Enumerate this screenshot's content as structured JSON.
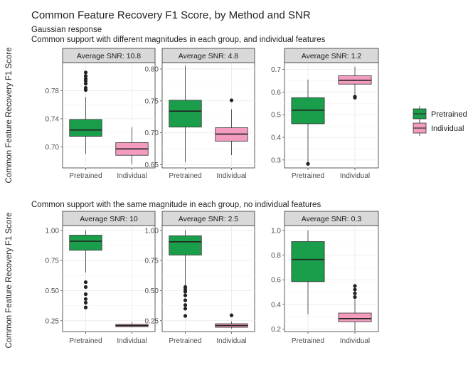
{
  "title": "Common Feature Recovery F1 Score, by Method and SNR",
  "subtitle_lines": [
    "Gaussian response",
    "Common support with different magnitudes in each group, and individual features"
  ],
  "section2_title": "Common support with the same magnitude in each group, no individual features",
  "ylabel": "Common Feature Recovery F1 Score",
  "legend": {
    "entries": [
      {
        "label": "Pretrained",
        "color": "#1b9e4b"
      },
      {
        "label": "Individual",
        "color": "#f39cbf"
      }
    ]
  },
  "colors": {
    "pretrained": "#1b9e4b",
    "individual": "#f39cbf",
    "strip": "#d9d9d9",
    "grid": "#ebebeb"
  },
  "chart_data": [
    {
      "type": "box",
      "title": "Average SNR: 10.8",
      "categories": [
        "Pretrained",
        "Individual"
      ],
      "ylim": [
        0.67,
        0.82
      ],
      "yticks": [
        0.7,
        0.74,
        0.78
      ],
      "ytick_labels": [
        "0.70",
        "0.74",
        "0.78"
      ],
      "series": [
        {
          "name": "Pretrained",
          "whisker_low": 0.69,
          "q1": 0.715,
          "median": 0.724,
          "q3": 0.739,
          "whisker_high": 0.771,
          "outliers": [
            0.781,
            0.784,
            0.79,
            0.794,
            0.797,
            0.801,
            0.806
          ]
        },
        {
          "name": "Individual",
          "whisker_low": 0.675,
          "q1": 0.688,
          "median": 0.697,
          "q3": 0.706,
          "whisker_high": 0.728,
          "outliers": []
        }
      ]
    },
    {
      "type": "box",
      "title": "Average SNR: 4.8",
      "categories": [
        "Pretrained",
        "Individual"
      ],
      "ylim": [
        0.645,
        0.81
      ],
      "yticks": [
        0.65,
        0.7,
        0.75,
        0.8
      ],
      "ytick_labels": [
        "0.65",
        "0.70",
        "0.75",
        "0.80"
      ],
      "series": [
        {
          "name": "Pretrained",
          "whisker_low": 0.654,
          "q1": 0.709,
          "median": 0.734,
          "q3": 0.751,
          "whisker_high": 0.805,
          "outliers": []
        },
        {
          "name": "Individual",
          "whisker_low": 0.665,
          "q1": 0.687,
          "median": 0.698,
          "q3": 0.708,
          "whisker_high": 0.737,
          "outliers": [
            0.751
          ]
        }
      ]
    },
    {
      "type": "box",
      "title": "Average SNR: 1.2",
      "categories": [
        "Pretrained",
        "Individual"
      ],
      "ylim": [
        0.265,
        0.73
      ],
      "yticks": [
        0.3,
        0.4,
        0.5,
        0.6,
        0.7
      ],
      "ytick_labels": [
        "0.3",
        "0.4",
        "0.5",
        "0.6",
        "0.7"
      ],
      "series": [
        {
          "name": "Pretrained",
          "whisker_low": 0.285,
          "q1": 0.46,
          "median": 0.52,
          "q3": 0.575,
          "whisker_high": 0.655,
          "outliers": [
            0.283
          ]
        },
        {
          "name": "Individual",
          "whisker_low": 0.59,
          "q1": 0.635,
          "median": 0.652,
          "q3": 0.672,
          "whisker_high": 0.712,
          "outliers": [
            0.575,
            0.58
          ]
        }
      ]
    },
    {
      "type": "box",
      "title": "Average SNR: 10",
      "categories": [
        "Pretrained",
        "Individual"
      ],
      "ylim": [
        0.16,
        1.04
      ],
      "yticks": [
        0.25,
        0.5,
        0.75,
        1.0
      ],
      "ytick_labels": [
        "0.25",
        "0.50",
        "0.75",
        "1.00"
      ],
      "series": [
        {
          "name": "Pretrained",
          "whisker_low": 0.65,
          "q1": 0.835,
          "median": 0.91,
          "q3": 0.96,
          "whisker_high": 1.0,
          "outliers": [
            0.36,
            0.4,
            0.43,
            0.47,
            0.53,
            0.57
          ]
        },
        {
          "name": "Individual",
          "whisker_low": 0.195,
          "q1": 0.2,
          "median": 0.21,
          "q3": 0.22,
          "whisker_high": 0.24,
          "outliers": []
        }
      ]
    },
    {
      "type": "box",
      "title": "Average SNR: 2.5",
      "categories": [
        "Pretrained",
        "Individual"
      ],
      "ylim": [
        0.16,
        1.04
      ],
      "yticks": [
        0.25,
        0.5,
        0.75,
        1.0
      ],
      "ytick_labels": [
        "0.25",
        "0.50",
        "0.75",
        "1.00"
      ],
      "series": [
        {
          "name": "Pretrained",
          "whisker_low": 0.54,
          "q1": 0.795,
          "median": 0.905,
          "q3": 0.955,
          "whisker_high": 1.0,
          "outliers": [
            0.29,
            0.35,
            0.38,
            0.42,
            0.46,
            0.49,
            0.51,
            0.53
          ]
        },
        {
          "name": "Individual",
          "whisker_low": 0.185,
          "q1": 0.195,
          "median": 0.21,
          "q3": 0.225,
          "whisker_high": 0.245,
          "outliers": [
            0.295
          ]
        }
      ]
    },
    {
      "type": "box",
      "title": "Average SNR: 0.3",
      "categories": [
        "Pretrained",
        "Individual"
      ],
      "ylim": [
        0.18,
        1.04
      ],
      "yticks": [
        0.2,
        0.4,
        0.6,
        0.8,
        1.0
      ],
      "ytick_labels": [
        "0.2",
        "0.4",
        "0.6",
        "0.8",
        "1.0"
      ],
      "series": [
        {
          "name": "Pretrained",
          "whisker_low": 0.32,
          "q1": 0.585,
          "median": 0.765,
          "q3": 0.91,
          "whisker_high": 1.0,
          "outliers": []
        },
        {
          "name": "Individual",
          "whisker_low": 0.185,
          "q1": 0.26,
          "median": 0.285,
          "q3": 0.33,
          "whisker_high": 0.44,
          "outliers": [
            0.46,
            0.49,
            0.52,
            0.55
          ]
        }
      ]
    }
  ]
}
